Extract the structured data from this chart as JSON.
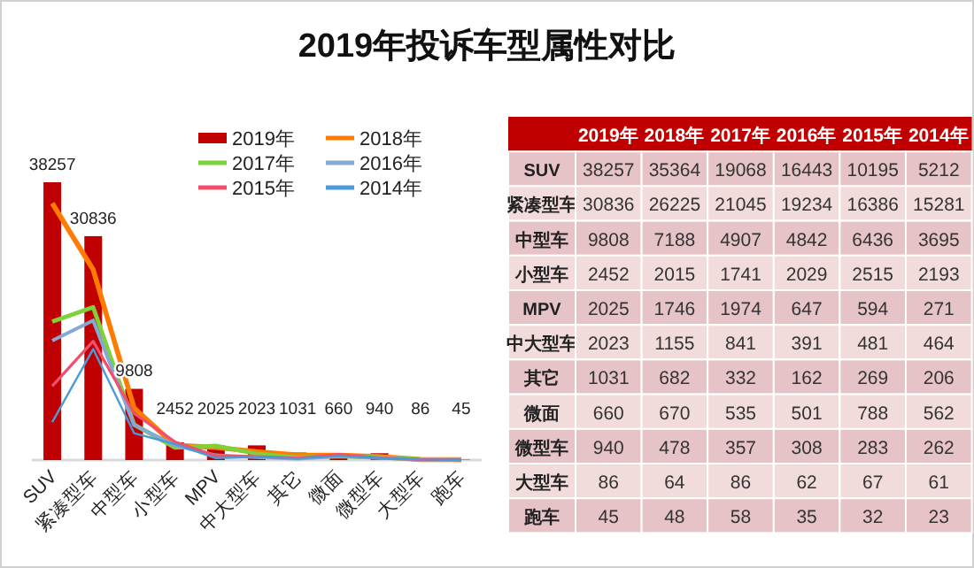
{
  "chart_data": [
    {
      "type": "bar",
      "title": "2019年投诉车型属性对比",
      "categories": [
        "SUV",
        "紧凑型车",
        "中型车",
        "小型车",
        "MPV",
        "中大型车",
        "其它",
        "微面",
        "微型车",
        "大型车",
        "跑车"
      ],
      "series": [
        {
          "name": "2019年",
          "type": "bar",
          "color": "#c00000",
          "values": [
            38257,
            30836,
            9808,
            2452,
            2025,
            2023,
            1031,
            660,
            940,
            86,
            45
          ],
          "value_labels": [
            "38257",
            "30836",
            "9808",
            "2452",
            "2025",
            "2023",
            "1031",
            "660",
            "940",
            "86",
            "45"
          ]
        },
        {
          "name": "2018年",
          "type": "line",
          "color": "#ff7c00",
          "values": [
            35364,
            26225,
            7188,
            2015,
            1746,
            1155,
            682,
            670,
            478,
            64,
            48
          ]
        },
        {
          "name": "2017年",
          "type": "line",
          "color": "#7fd13b",
          "values": [
            19068,
            21045,
            4907,
            1741,
            1974,
            841,
            332,
            535,
            357,
            86,
            58
          ]
        },
        {
          "name": "2016年",
          "type": "line",
          "color": "#86a8d4",
          "values": [
            16443,
            19234,
            4842,
            2029,
            647,
            391,
            162,
            501,
            308,
            62,
            35
          ]
        },
        {
          "name": "2015年",
          "type": "line",
          "color": "#f0506e",
          "values": [
            10195,
            16386,
            6436,
            2515,
            594,
            481,
            269,
            788,
            283,
            67,
            32
          ]
        },
        {
          "name": "2014年",
          "type": "line",
          "color": "#4a9bd8",
          "values": [
            5212,
            15281,
            3695,
            2193,
            271,
            464,
            206,
            562,
            262,
            61,
            23
          ]
        }
      ],
      "legend": "top right"
    },
    {
      "type": "heatmap",
      "categories": [
        "2019年",
        "2018年",
        "2017年",
        "2016年",
        "2015年",
        "2014年"
      ],
      "y_categories": [
        "SUV",
        "紧凑型车",
        "中型车",
        "小型车",
        "MPV",
        "中大型车",
        "其它",
        "微面",
        "微型车",
        "大型车",
        "跑车"
      ],
      "cells": [
        [
          38257,
          35364,
          19068,
          16443,
          10195,
          5212
        ],
        [
          30836,
          26225,
          21045,
          19234,
          16386,
          15281
        ],
        [
          9808,
          7188,
          4907,
          4842,
          6436,
          3695
        ],
        [
          2452,
          2015,
          1741,
          2029,
          2515,
          2193
        ],
        [
          2025,
          1746,
          1974,
          647,
          594,
          271
        ],
        [
          2023,
          1155,
          841,
          391,
          481,
          464
        ],
        [
          1031,
          682,
          332,
          162,
          269,
          206
        ],
        [
          660,
          670,
          535,
          501,
          788,
          562
        ],
        [
          940,
          478,
          357,
          308,
          283,
          262
        ],
        [
          86,
          64,
          86,
          62,
          67,
          61
        ],
        [
          45,
          48,
          58,
          35,
          32,
          23
        ]
      ],
      "data_labels": true
    }
  ]
}
